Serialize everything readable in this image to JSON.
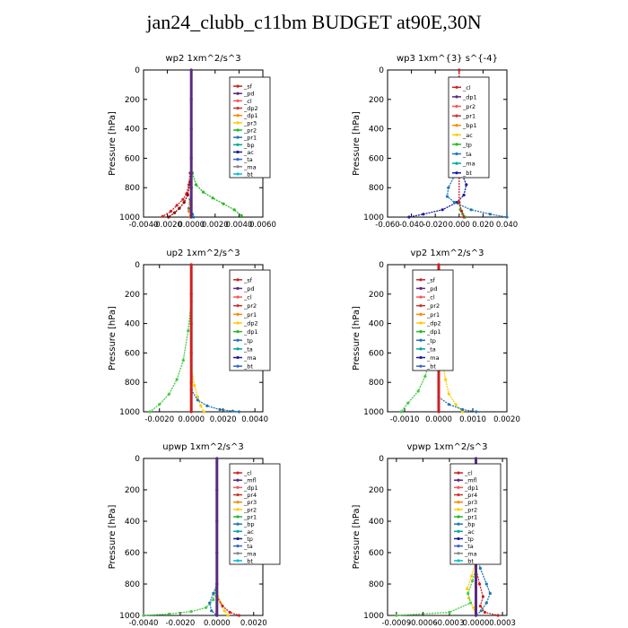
{
  "title": "jan24_clubb_c11bm  BUDGET at90E,30N",
  "chart_data": [
    {
      "type": "line",
      "title": "wp2   1xm^2/s^3",
      "ylabel": "Pressure  [hPa]",
      "xticks": [
        "-0.0040",
        "-0.0020",
        "0.0000",
        "0.0020",
        "0.0040",
        "0.0060"
      ],
      "xlim": [
        -0.004,
        0.006
      ],
      "yticks": [
        "0",
        "200",
        "400",
        "600",
        "800",
        "1000"
      ],
      "ylim": [
        0,
        1000
      ],
      "legend": [
        "_sf",
        "_pd",
        "_cl",
        "_dp2",
        "_dp1",
        "_pr3",
        "_pr2",
        "_pr1",
        "_bp",
        "_ac",
        "_ta",
        "_ma",
        "_bt"
      ],
      "series": [
        {
          "name": "_dp1",
          "color": "#cc2222",
          "x": [
            -0.0001,
            -0.0002,
            -0.0004,
            -0.0007,
            -0.0012,
            -0.0017,
            -0.0024
          ],
          "y": [
            700,
            780,
            840,
            880,
            920,
            960,
            995
          ]
        },
        {
          "name": "_dp2",
          "color": "#8b0000",
          "x": [
            -0.0001,
            -0.0003,
            -0.0006,
            -0.001,
            -0.0014,
            -0.0019
          ],
          "y": [
            760,
            850,
            900,
            940,
            970,
            1000
          ]
        },
        {
          "name": "_pr1",
          "color": "#22bb22",
          "x": [
            0.0001,
            0.0004,
            0.001,
            0.0018,
            0.0027,
            0.0036,
            0.0042
          ],
          "y": [
            700,
            780,
            830,
            870,
            910,
            950,
            990
          ]
        },
        {
          "name": "_ac",
          "color": "#1f77b4",
          "x": [
            0.0,
            -0.0001,
            -0.0002,
            0.0001,
            0.0002
          ],
          "y": [
            800,
            880,
            940,
            980,
            1000
          ]
        },
        {
          "name": "_pd",
          "color": "#ff8800",
          "x": [
            0.0,
            -0.0001,
            -0.0002,
            -0.0001
          ],
          "y": [
            800,
            900,
            960,
            1000
          ]
        },
        {
          "name": "_bt",
          "color": "#5a2a82",
          "x": [
            0.0,
            0.0,
            0.0,
            0.0,
            0.0,
            0.0
          ],
          "y": [
            0,
            200,
            400,
            600,
            800,
            1000
          ]
        }
      ]
    },
    {
      "type": "line",
      "title": "wp3   1xm^{3} s^{-4}",
      "ylabel": "Pressure  [hPa]",
      "xticks": [
        "-0.060",
        "-0.040",
        "-0.020",
        "0.000",
        "0.020",
        "0.040"
      ],
      "xlim": [
        -0.06,
        0.04
      ],
      "yticks": [
        "0",
        "200",
        "400",
        "600",
        "800",
        "1000"
      ],
      "ylim": [
        0,
        1000
      ],
      "legend": [
        "_cl",
        "_dp1",
        "_pr2",
        "_pr1",
        "_bp1",
        "_ac",
        "_tp",
        "_ta",
        "_ma",
        "_bt"
      ],
      "series": [
        {
          "name": "_ta",
          "color": "#1a1aa0",
          "x": [
            0.0,
            0.002,
            0.006,
            0.004,
            -0.002,
            -0.014,
            -0.03,
            -0.042
          ],
          "y": [
            650,
            700,
            780,
            850,
            900,
            950,
            980,
            1000
          ]
        },
        {
          "name": "_tp",
          "color": "#1f77b4",
          "x": [
            0.0,
            -0.004,
            -0.009,
            -0.01,
            -0.004,
            0.01,
            0.026,
            0.04
          ],
          "y": [
            650,
            720,
            800,
            860,
            900,
            950,
            980,
            1000
          ]
        },
        {
          "name": "_pr1",
          "color": "#22bb22",
          "x": [
            0.0,
            0.001,
            0.003,
            0.005
          ],
          "y": [
            900,
            950,
            980,
            1000
          ]
        },
        {
          "name": "_cl",
          "color": "#cc2222",
          "x": [
            0.0,
            0.0,
            0.0,
            0.002,
            0.004
          ],
          "y": [
            0,
            500,
            900,
            960,
            1000
          ]
        }
      ]
    },
    {
      "type": "line",
      "title": "up2   1xm^2/s^3",
      "ylabel": "Pressure  [hPa]",
      "xticks": [
        "-0.0020",
        "0.0000",
        "0.0020",
        "0.0040"
      ],
      "xlim": [
        -0.003,
        0.0045
      ],
      "yticks": [
        "0",
        "200",
        "400",
        "600",
        "800",
        "1000"
      ],
      "ylim": [
        0,
        1000
      ],
      "legend": [
        "_sf",
        "_pd",
        "_cl",
        "_pr2",
        "_pr1",
        "_dp2",
        "_dp1",
        "_tp",
        "_ta",
        "_ma",
        "_bt"
      ],
      "series": [
        {
          "name": "_dp1",
          "color": "#44cc44",
          "x": [
            0.0,
            -0.0002,
            -0.0005,
            -0.0009,
            -0.0014,
            -0.002,
            -0.0026
          ],
          "y": [
            250,
            450,
            650,
            780,
            880,
            950,
            1000
          ]
        },
        {
          "name": "_pr1",
          "color": "#ffcc00",
          "x": [
            0.0,
            0.0002,
            0.0004,
            0.0006,
            0.0008
          ],
          "y": [
            700,
            820,
            900,
            960,
            1000
          ]
        },
        {
          "name": "_tp",
          "color": "#1f77b4",
          "x": [
            0.0,
            0.0004,
            0.001,
            0.0018,
            0.0026,
            0.003
          ],
          "y": [
            850,
            920,
            960,
            985,
            995,
            1000
          ]
        },
        {
          "name": "_bt",
          "color": "#cc2222",
          "x": [
            0.0,
            0.0,
            0.0,
            0.0,
            0.0,
            0.0
          ],
          "y": [
            0,
            200,
            400,
            600,
            800,
            1000
          ]
        }
      ]
    },
    {
      "type": "line",
      "title": "vp2   1xm^2/s^3",
      "ylabel": "Pressure  [hPa]",
      "xticks": [
        "-0.0010",
        "0.0000",
        "0.0010",
        "0.0020"
      ],
      "xlim": [
        -0.0015,
        0.002
      ],
      "yticks": [
        "0",
        "200",
        "400",
        "600",
        "800",
        "1000"
      ],
      "ylim": [
        0,
        1000
      ],
      "legend": [
        "_sf",
        "_pd",
        "_cl",
        "_pr2",
        "_pr1",
        "_dp2",
        "_dp1",
        "_tp",
        "_ta",
        "_ma",
        "_bt"
      ],
      "series": [
        {
          "name": "_dp1",
          "color": "#44cc44",
          "x": [
            0.0,
            -0.0001,
            -0.0002,
            -0.0004,
            -0.0006,
            -0.0009,
            -0.0011
          ],
          "y": [
            200,
            400,
            600,
            760,
            860,
            940,
            1000
          ]
        },
        {
          "name": "_pr1",
          "color": "#ffcc00",
          "x": [
            0.0,
            0.0001,
            0.0002,
            0.0003,
            0.0005,
            0.0007
          ],
          "y": [
            500,
            650,
            780,
            880,
            950,
            1000
          ]
        },
        {
          "name": "_tp",
          "color": "#1f77b4",
          "x": [
            0.0,
            0.0003,
            0.0007,
            0.0011
          ],
          "y": [
            900,
            950,
            985,
            1000
          ]
        },
        {
          "name": "_bt",
          "color": "#cc2222",
          "x": [
            0.0,
            0.0,
            0.0,
            0.0,
            0.0,
            0.0
          ],
          "y": [
            0,
            200,
            400,
            600,
            800,
            1000
          ]
        }
      ]
    },
    {
      "type": "line",
      "title": "upwp   1xm^2/s^3",
      "ylabel": "Pressure  [hPa]",
      "xticks": [
        "-0.0040",
        "-0.0020",
        "0.0000",
        "0.0020"
      ],
      "xlim": [
        -0.004,
        0.0025
      ],
      "yticks": [
        "0",
        "200",
        "400",
        "600",
        "800",
        "1000"
      ],
      "ylim": [
        0,
        1000
      ],
      "legend": [
        "_cl",
        "_mfl",
        "_dp1",
        "_pr4",
        "_pr3",
        "_pr2",
        "_pr1",
        "_bp",
        "_ac",
        "_tp",
        "_ta",
        "_ma",
        "_bt"
      ],
      "series": [
        {
          "name": "_dp1",
          "color": "#44cc44",
          "x": [
            0.0,
            -0.0002,
            -0.0006,
            -0.0014,
            -0.0026,
            -0.004
          ],
          "y": [
            800,
            900,
            950,
            975,
            990,
            1000
          ]
        },
        {
          "name": "_ac",
          "color": "#1f77b4",
          "x": [
            0.0,
            -0.0002,
            -0.0004,
            -0.0003,
            0.0
          ],
          "y": [
            800,
            860,
            920,
            970,
            1000
          ]
        },
        {
          "name": "_pr1",
          "color": "#ffcc00",
          "x": [
            0.0,
            0.0002,
            0.0004,
            0.0006
          ],
          "y": [
            850,
            920,
            970,
            1000
          ]
        },
        {
          "name": "_mfl",
          "color": "#cc2222",
          "x": [
            0.0,
            0.0003,
            0.0007,
            0.0012
          ],
          "y": [
            880,
            940,
            980,
            1000
          ]
        },
        {
          "name": "_bt",
          "color": "#5a2a82",
          "x": [
            0.0,
            0.0,
            0.0,
            0.0,
            0.0,
            0.0
          ],
          "y": [
            0,
            200,
            400,
            600,
            800,
            1000
          ]
        }
      ]
    },
    {
      "type": "line",
      "title": "vpwp   1xm^2/s^3",
      "ylabel": "Pressure  [hPa]",
      "xticks": [
        "-0.0009",
        "-0.0006",
        "-0.0003",
        "0.0000",
        "0.0003"
      ],
      "xlim": [
        -0.001,
        0.00035
      ],
      "yticks": [
        "0",
        "200",
        "400",
        "600",
        "800",
        "1000"
      ],
      "ylim": [
        0,
        1000
      ],
      "legend": [
        "_cl",
        "_mfl",
        "_dp1",
        "_pr4",
        "_pr3",
        "_pr2",
        "_pr1",
        "_bp",
        "_ac",
        "_tp",
        "_ta",
        "_ma",
        "_bt"
      ],
      "series": [
        {
          "name": "_ac",
          "color": "#1f77b4",
          "x": [
            0.0,
            5e-05,
            0.00012,
            0.00016,
            0.00012,
            6e-05,
            0.0
          ],
          "y": [
            600,
            700,
            800,
            860,
            920,
            970,
            1000
          ]
        },
        {
          "name": "_pr1",
          "color": "#ffcc00",
          "x": [
            0.0,
            -5e-05,
            -0.0001,
            -8e-05,
            -3e-05,
            0.0
          ],
          "y": [
            650,
            750,
            830,
            890,
            950,
            1000
          ]
        },
        {
          "name": "_dp1",
          "color": "#44cc44",
          "x": [
            0.0,
            -4e-05,
            -9e-05,
            -6e-05,
            -0.0003,
            -0.0009
          ],
          "y": [
            700,
            780,
            860,
            920,
            980,
            1000
          ]
        },
        {
          "name": "_mfl",
          "color": "#cc2222",
          "x": [
            0.0,
            4e-05,
            8e-05,
            5e-05,
            0.0001,
            0.00025
          ],
          "y": [
            700,
            800,
            880,
            940,
            980,
            1000
          ]
        },
        {
          "name": "_bt",
          "color": "#5a2a82",
          "x": [
            0.0,
            0.0,
            0.0,
            0.0,
            0.0,
            0.0
          ],
          "y": [
            0,
            200,
            400,
            600,
            800,
            1000
          ]
        }
      ]
    }
  ]
}
